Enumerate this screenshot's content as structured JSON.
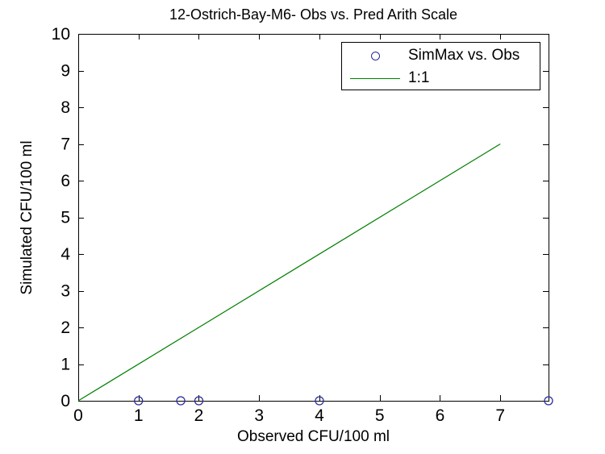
{
  "figure": {
    "title": "12-Ostrich-Bay-M6- Obs vs. Pred Arith Scale",
    "xlabel": "Observed CFU/100 ml",
    "ylabel": "Simulated CFU/100 ml"
  },
  "legend": {
    "position": "upper right",
    "entries": [
      {
        "label": "SimMax vs. Obs",
        "swatch": "circle-marker",
        "color": "#2a2a9e"
      },
      {
        "label": "1:1",
        "swatch": "line",
        "color": "#007f00"
      }
    ]
  },
  "chart_data": {
    "type": "scatter",
    "title": "12-Ostrich-Bay-M6- Obs vs. Pred Arith Scale",
    "xlabel": "Observed CFU/100 ml",
    "ylabel": "Simulated CFU/100 ml",
    "xlim": [
      0,
      7.8
    ],
    "ylim": [
      0,
      10
    ],
    "xticks": [
      0,
      1,
      2,
      3,
      4,
      5,
      6,
      7
    ],
    "xtick_labels": [
      "0",
      "1",
      "2",
      "3",
      "4",
      "5",
      "6",
      "7"
    ],
    "yticks": [
      0,
      1,
      2,
      3,
      4,
      5,
      6,
      7,
      8,
      9,
      10
    ],
    "ytick_labels": [
      "0",
      "1",
      "2",
      "3",
      "4",
      "5",
      "6",
      "7",
      "8",
      "9",
      "10"
    ],
    "grid": false,
    "box": true,
    "legend_position": "upper right",
    "series": [
      {
        "name": "SimMax vs. Obs",
        "type": "scatter",
        "marker": "circle",
        "color": "#2a2a9e",
        "points": [
          [
            1,
            0
          ],
          [
            1.7,
            0
          ],
          [
            2,
            0
          ],
          [
            4,
            0
          ],
          [
            7.8,
            0
          ]
        ]
      },
      {
        "name": "1:1",
        "type": "line",
        "color": "#007f00",
        "points": [
          [
            0,
            0
          ],
          [
            7,
            7
          ]
        ]
      }
    ],
    "colors": {
      "axis": "#000000",
      "tick_label": "#000000",
      "background": "#ffffff"
    }
  }
}
